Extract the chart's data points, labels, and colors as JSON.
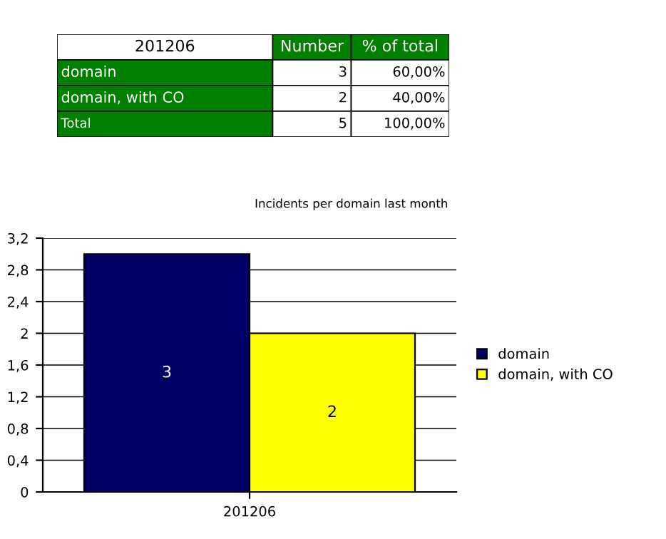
{
  "chart_data": [
    {
      "type": "other",
      "annotations": [
        "201206",
        "Number",
        "% of total",
        "domain",
        "3",
        "60,00%",
        "domain, with CO",
        "2",
        "40,00%",
        "Total",
        "5",
        "100,00%"
      ]
    },
    {
      "type": "bar",
      "title": "Incidents per domain last month",
      "categories": [
        "201206"
      ],
      "series": [
        {
          "name": "domain",
          "color": "#000066",
          "values": [
            3
          ]
        },
        {
          "name": "domain, with CO",
          "color": "#ffff00",
          "values": [
            2
          ]
        }
      ],
      "ylim": [
        0,
        3.2
      ],
      "yticks": [
        {
          "value": 0,
          "label": "0"
        },
        {
          "value": 0.4,
          "label": "0,4"
        },
        {
          "value": 0.8,
          "label": "0,8"
        },
        {
          "value": 1.2,
          "label": "1,2"
        },
        {
          "value": 1.6,
          "label": "1,6"
        },
        {
          "value": 2,
          "label": "2"
        },
        {
          "value": 2.4,
          "label": "2,4"
        },
        {
          "value": 2.8,
          "label": "2,8"
        },
        {
          "value": 3.2,
          "label": "3,2"
        }
      ],
      "grid": "y",
      "legend": "right",
      "data_labels": true
    }
  ]
}
